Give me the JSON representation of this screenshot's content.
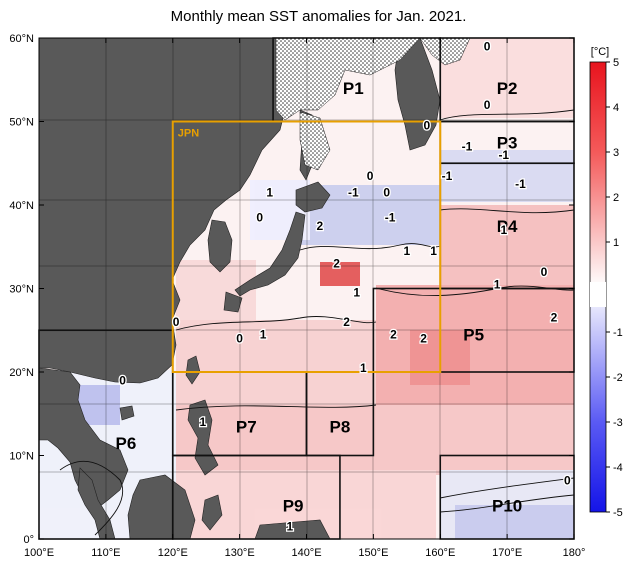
{
  "title": "Monthly mean SST anomalies for Jan. 2021.",
  "map": {
    "lon_range": [
      100,
      180
    ],
    "lat_range": [
      0,
      60
    ],
    "x_ticks": [
      "100°E",
      "110°E",
      "120°E",
      "130°E",
      "140°E",
      "150°E",
      "160°E",
      "170°E",
      "180°"
    ],
    "y_ticks": [
      "60°N",
      "50°N",
      "40°N",
      "30°N",
      "20°N",
      "10°N",
      "0°"
    ],
    "land_color": "#595959",
    "sea_ice_pattern": "dotted"
  },
  "colorbar": {
    "unit": "[°C]",
    "ticks": [
      "5",
      "4",
      "3",
      "2",
      "1",
      "-1",
      "-2",
      "-3",
      "-4",
      "-5"
    ],
    "min": -5,
    "max": 5,
    "high_color": "#e8141e",
    "low_color": "#1414e8"
  },
  "jpn_box": {
    "label": "JPN",
    "color": "#e8a000",
    "lon": [
      120,
      160
    ],
    "lat": [
      20,
      50
    ]
  },
  "regions": [
    {
      "label": "P1",
      "lon": [
        135,
        160
      ],
      "lat": [
        50,
        60
      ],
      "label_at": [
        147,
        54
      ]
    },
    {
      "label": "P2",
      "lon": [
        160,
        180
      ],
      "lat": [
        50,
        60
      ],
      "label_at": [
        170,
        54
      ]
    },
    {
      "label": "P3",
      "lon": [
        160,
        180
      ],
      "lat": [
        45,
        50
      ],
      "label_at": [
        170,
        47.5
      ]
    },
    {
      "label": "P4",
      "lon": [
        160,
        180
      ],
      "lat": [
        30,
        45
      ],
      "label_at": [
        170,
        37.5
      ]
    },
    {
      "label": "P5",
      "lon": [
        150,
        180
      ],
      "lat": [
        20,
        30
      ],
      "label_at": [
        165,
        24.5
      ]
    },
    {
      "label": "P6",
      "lon": [
        100,
        120
      ],
      "lat": [
        0,
        25
      ],
      "label_at": [
        113,
        11.5
      ]
    },
    {
      "label": "P7",
      "lon": [
        120,
        140
      ],
      "lat": [
        10,
        20
      ],
      "label_at": [
        131,
        13.5
      ]
    },
    {
      "label": "P8",
      "lon": [
        140,
        150
      ],
      "lat": [
        10,
        20
      ],
      "label_at": [
        145,
        13.5
      ]
    },
    {
      "label": "P9",
      "lon": [
        120,
        145
      ],
      "lat": [
        0,
        10
      ],
      "label_at": [
        138,
        4
      ]
    },
    {
      "label": "P10",
      "lon": [
        160,
        180
      ],
      "lat": [
        0,
        10
      ],
      "label_at": [
        170,
        4
      ]
    }
  ],
  "contour_labels": [
    {
      "text": "0",
      "at": [
        167,
        52
      ]
    },
    {
      "text": "0",
      "at": [
        158,
        49.5
      ]
    },
    {
      "text": "-1",
      "at": [
        164,
        47
      ]
    },
    {
      "text": "-1",
      "at": [
        169.5,
        46
      ]
    },
    {
      "text": "-1",
      "at": [
        161,
        43.5
      ]
    },
    {
      "text": "-1",
      "at": [
        172,
        42.5
      ]
    },
    {
      "text": "0",
      "at": [
        149.5,
        43.5
      ]
    },
    {
      "text": "-1",
      "at": [
        147,
        41.5
      ]
    },
    {
      "text": "0",
      "at": [
        152,
        41.5
      ]
    },
    {
      "text": "-1",
      "at": [
        152.5,
        38.5
      ]
    },
    {
      "text": "1",
      "at": [
        134.5,
        41.5
      ]
    },
    {
      "text": "0",
      "at": [
        133,
        38.5
      ]
    },
    {
      "text": "2",
      "at": [
        142,
        37.5
      ]
    },
    {
      "text": "2",
      "at": [
        144.5,
        33
      ]
    },
    {
      "text": "1",
      "at": [
        155,
        34.5
      ]
    },
    {
      "text": "1",
      "at": [
        159,
        34.5
      ]
    },
    {
      "text": "1",
      "at": [
        169.5,
        37
      ]
    },
    {
      "text": "0",
      "at": [
        175.5,
        32
      ]
    },
    {
      "text": "1",
      "at": [
        168.5,
        30.5
      ]
    },
    {
      "text": "1",
      "at": [
        147.5,
        29.5
      ]
    },
    {
      "text": "2",
      "at": [
        146,
        26
      ]
    },
    {
      "text": "2",
      "at": [
        177,
        26.5
      ]
    },
    {
      "text": "0",
      "at": [
        120.5,
        26
      ]
    },
    {
      "text": "1",
      "at": [
        133.5,
        24.5
      ]
    },
    {
      "text": "0",
      "at": [
        130,
        24
      ]
    },
    {
      "text": "2",
      "at": [
        153,
        24.5
      ]
    },
    {
      "text": "2",
      "at": [
        157.5,
        24
      ]
    },
    {
      "text": "1",
      "at": [
        148.5,
        20.5
      ]
    },
    {
      "text": "0",
      "at": [
        112.5,
        19
      ]
    },
    {
      "text": "1",
      "at": [
        124.5,
        14
      ]
    },
    {
      "text": "0",
      "at": [
        179,
        7
      ]
    },
    {
      "text": "1",
      "at": [
        137.5,
        1.5
      ]
    },
    {
      "text": "0",
      "at": [
        167,
        59
      ]
    }
  ]
}
